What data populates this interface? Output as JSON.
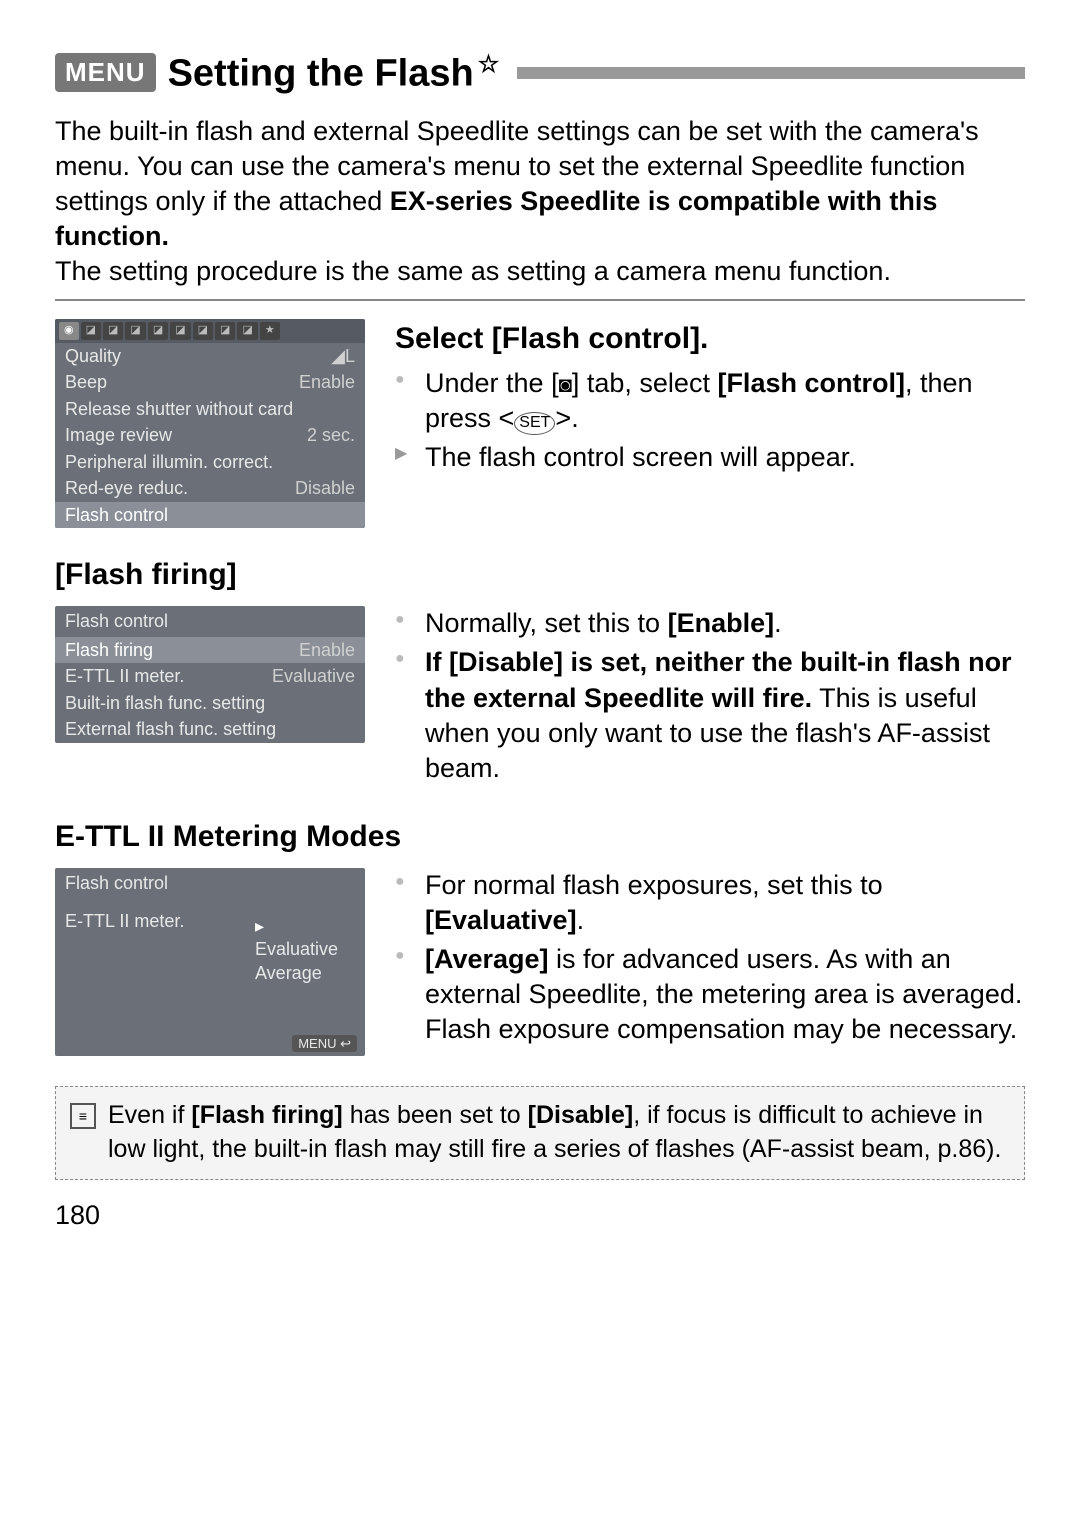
{
  "header": {
    "menu_badge": "MENU",
    "title": "Setting the Flash",
    "star": "☆"
  },
  "intro": {
    "line1": "The built-in flash and external Speedlite settings can be set with the camera's menu. You can use the camera's menu to set the external Speedlite function settings only if the attached ",
    "bold1": "EX-series Speedlite is compatible with this function.",
    "line2": "The setting procedure is the same as setting a camera menu function."
  },
  "lcd1": {
    "rows": [
      {
        "label": "Quality",
        "value": "◢L"
      },
      {
        "label": "Beep",
        "value": "Enable"
      },
      {
        "label": "Release shutter without card",
        "value": ""
      },
      {
        "label": "Image review",
        "value": "2 sec."
      },
      {
        "label": "Peripheral illumin. correct.",
        "value": ""
      },
      {
        "label": "Red-eye reduc.",
        "value": "Disable"
      },
      {
        "label": "Flash control",
        "value": "",
        "hl": true
      }
    ]
  },
  "section1": {
    "heading": "Select [Flash control].",
    "b1a": "Under the [",
    "b1b": "] tab, select ",
    "b1c": "[Flash control]",
    "b1d": ", then press <",
    "b1e": ">.",
    "set_label": "SET",
    "b2": "The flash control screen will appear."
  },
  "section2": {
    "heading": "[Flash firing]",
    "lcd_title": "Flash control",
    "lcd_rows": [
      {
        "label": "Flash firing",
        "value": "Enable",
        "hl": true
      },
      {
        "label": "E-TTL II meter.",
        "value": "Evaluative"
      },
      {
        "label": "Built-in flash func. setting",
        "value": ""
      },
      {
        "label": "External flash func. setting",
        "value": ""
      }
    ],
    "b1a": "Normally, set this to ",
    "b1b": "[Enable]",
    "b1c": ".",
    "b2a": "If [Disable] is set, neither the built-in flash nor the external Speedlite will fire.",
    "b2b": " This is useful when you only want to use the flash's AF-assist beam."
  },
  "section3": {
    "heading": "E-TTL II Metering Modes",
    "lcd_title": "Flash control",
    "lcd_label": "E-TTL II meter.",
    "lcd_opts": [
      "Evaluative",
      "Average"
    ],
    "menu_back": "MENU ↩",
    "b1a": "For normal flash exposures, set this to ",
    "b1b": "[Evaluative]",
    "b1c": ".",
    "b2a": "[Average]",
    "b2b": " is for advanced users. As with an external Speedlite, the metering area is averaged. Flash exposure compensation may be necessary."
  },
  "note": {
    "icon": "📑",
    "t1": "Even if ",
    "t2": "[Flash firing]",
    "t3": " has been set to ",
    "t4": "[Disable]",
    "t5": ", if focus is difficult to achieve in low light, the built-in flash may still fire a series of flashes (AF-assist beam, p.86)."
  },
  "page_number": "180"
}
